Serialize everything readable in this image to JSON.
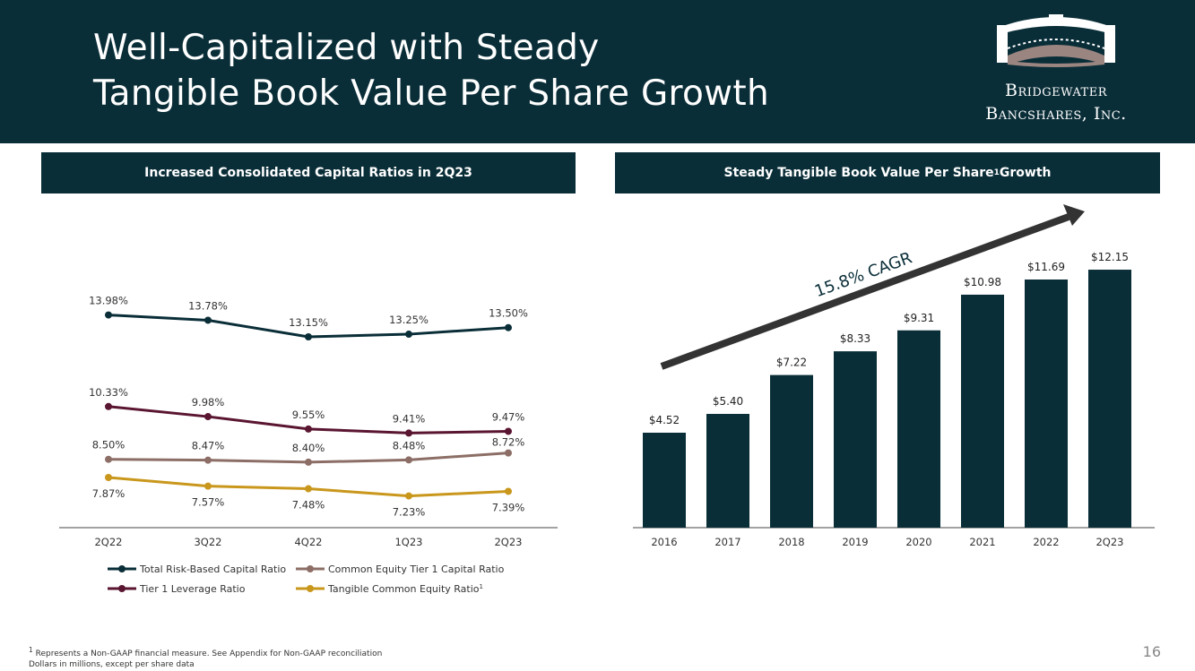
{
  "header": {
    "title_line1": "Well-Capitalized with Steady",
    "title_line2": "Tangible Book Value Per Share Growth",
    "logo_line1": "Bridgewater",
    "logo_line2": "Bancshares, Inc."
  },
  "left_panel": {
    "title": "Increased Consolidated Capital Ratios in 2Q23"
  },
  "right_panel": {
    "title_main": "Steady Tangible Book Value Per Share",
    "title_sup": "1",
    "title_end": " Growth"
  },
  "colors": {
    "navy": "#0a2e38",
    "maroon": "#5a1530",
    "taupe": "#8c6e66",
    "gold": "#c9971c",
    "arrow": "#333333"
  },
  "chart_data": [
    {
      "type": "line",
      "categories": [
        "2Q22",
        "3Q22",
        "4Q22",
        "1Q23",
        "2Q23"
      ],
      "series": [
        {
          "name": "Total Risk-Based Capital Ratio",
          "values": [
            13.98,
            13.78,
            13.15,
            13.25,
            13.5
          ],
          "labels": [
            "13.98%",
            "13.78%",
            "13.15%",
            "13.25%",
            "13.50%"
          ],
          "color": "#0a2e38"
        },
        {
          "name": "Tier 1 Leverage Ratio",
          "values": [
            10.33,
            9.98,
            9.55,
            9.41,
            9.47
          ],
          "labels": [
            "10.33%",
            "9.98%",
            "9.55%",
            "9.41%",
            "9.47%"
          ],
          "color": "#5a1530"
        },
        {
          "name": "Common Equity Tier 1 Capital Ratio",
          "values": [
            8.5,
            8.47,
            8.4,
            8.48,
            8.72
          ],
          "labels": [
            "8.50%",
            "8.47%",
            "8.40%",
            "8.48%",
            "8.72%"
          ],
          "color": "#8c6e66"
        },
        {
          "name": "Tangible Common Equity Ratio",
          "name_sup": "1",
          "values": [
            7.87,
            7.57,
            7.48,
            7.23,
            7.39
          ],
          "labels": [
            "7.87%",
            "7.57%",
            "7.48%",
            "7.23%",
            "7.39%"
          ],
          "color": "#c9971c"
        }
      ],
      "legend_position": "bottom"
    },
    {
      "type": "bar",
      "categories": [
        "2016",
        "2017",
        "2018",
        "2019",
        "2020",
        "2021",
        "2022",
        "2Q23"
      ],
      "values": [
        4.52,
        5.4,
        7.22,
        8.33,
        9.31,
        10.98,
        11.69,
        12.15
      ],
      "labels": [
        "$4.52",
        "$5.40",
        "$7.22",
        "$8.33",
        "$9.31",
        "$10.98",
        "$11.69",
        "$12.15"
      ],
      "annotation": "15.8% CAGR",
      "color": "#0a2e38"
    }
  ],
  "footnote": {
    "line1": "Represents a Non-GAAP financial measure. See Appendix for Non-GAAP reconciliation",
    "line1_sup": "1",
    "line2": "Dollars in millions, except per share data"
  },
  "page_number": "16"
}
